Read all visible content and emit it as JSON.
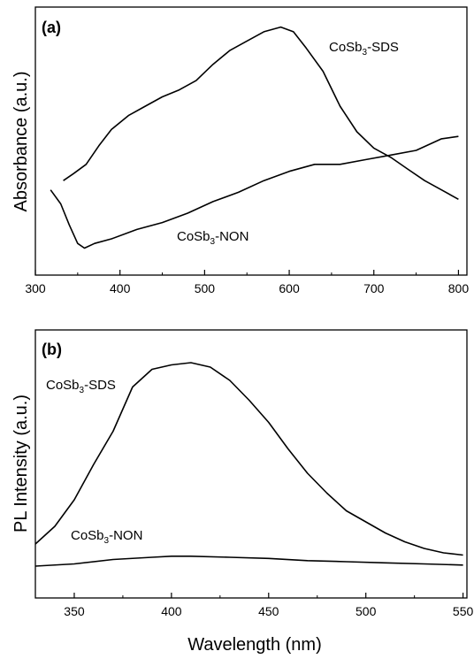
{
  "chart_data": [
    {
      "type": "line",
      "panel_label": "(a)",
      "xlabel": "",
      "ylabel": "Absorbance (a.u.)",
      "xlim": [
        300,
        810
      ],
      "ylim": [
        0,
        1
      ],
      "y_ticks_shown": false,
      "x_ticks": [
        300,
        400,
        500,
        600,
        700,
        800
      ],
      "grid": false,
      "series": [
        {
          "name": "CoSb3-SDS",
          "label_main": "CoSb",
          "label_sub": "3",
          "label_tail": "-SDS",
          "x": [
            333,
            345,
            360,
            375,
            390,
            410,
            430,
            450,
            470,
            490,
            510,
            530,
            550,
            570,
            590,
            605,
            620,
            640,
            660,
            680,
            700,
            720,
            740,
            760,
            780,
            800
          ],
          "y": [
            0.33,
            0.36,
            0.4,
            0.48,
            0.55,
            0.61,
            0.65,
            0.69,
            0.72,
            0.76,
            0.83,
            0.89,
            0.93,
            0.97,
            0.99,
            0.97,
            0.9,
            0.8,
            0.65,
            0.54,
            0.47,
            0.43,
            0.38,
            0.33,
            0.29,
            0.25
          ]
        },
        {
          "name": "CoSb3-NON",
          "label_main": "CoSb",
          "label_sub": "3",
          "label_tail": "-NON",
          "x": [
            318,
            330,
            340,
            350,
            358,
            370,
            390,
            420,
            450,
            480,
            510,
            540,
            570,
            600,
            630,
            660,
            690,
            720,
            750,
            780,
            800
          ],
          "y": [
            0.29,
            0.23,
            0.14,
            0.06,
            0.04,
            0.06,
            0.08,
            0.12,
            0.15,
            0.19,
            0.24,
            0.28,
            0.33,
            0.37,
            0.4,
            0.4,
            0.42,
            0.44,
            0.46,
            0.51,
            0.52
          ]
        }
      ]
    },
    {
      "type": "line",
      "panel_label": "(b)",
      "xlabel": "Wavelength (nm)",
      "ylabel": "PL Intensity (a.u.)",
      "xlim": [
        330,
        552
      ],
      "ylim": [
        0,
        1
      ],
      "y_ticks_shown": false,
      "x_ticks": [
        350,
        400,
        450,
        500,
        550
      ],
      "grid": false,
      "series": [
        {
          "name": "CoSb3-SDS",
          "label_main": "CoSb",
          "label_sub": "3",
          "label_tail": "-SDS",
          "x": [
            330,
            340,
            350,
            360,
            370,
            380,
            390,
            400,
            410,
            420,
            430,
            440,
            450,
            460,
            470,
            480,
            490,
            500,
            510,
            520,
            530,
            540,
            550
          ],
          "y": [
            0.14,
            0.22,
            0.34,
            0.5,
            0.65,
            0.85,
            0.93,
            0.95,
            0.96,
            0.94,
            0.88,
            0.79,
            0.69,
            0.57,
            0.46,
            0.37,
            0.29,
            0.24,
            0.19,
            0.15,
            0.12,
            0.1,
            0.09
          ]
        },
        {
          "name": "CoSb3-NON",
          "label_main": "CoSb",
          "label_sub": "3",
          "label_tail": "-NON",
          "x": [
            330,
            350,
            370,
            390,
            400,
            410,
            430,
            450,
            470,
            490,
            510,
            530,
            550
          ],
          "y": [
            0.04,
            0.05,
            0.07,
            0.08,
            0.085,
            0.085,
            0.08,
            0.075,
            0.065,
            0.06,
            0.055,
            0.05,
            0.045
          ]
        }
      ]
    }
  ]
}
